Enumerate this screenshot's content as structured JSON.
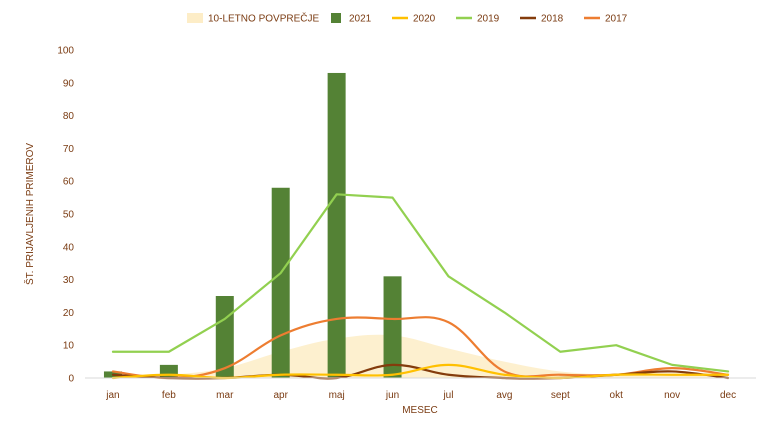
{
  "chart_data": {
    "type": "bar",
    "title": "",
    "xlabel": "MESEC",
    "ylabel": "ŠT. PRIJAVLJENIH PRIMEROV",
    "ylim": [
      0,
      100
    ],
    "yticks": [
      0,
      10,
      20,
      30,
      40,
      50,
      60,
      70,
      80,
      90,
      100
    ],
    "grid": false,
    "legend_position": "top",
    "categories": [
      "jan",
      "feb",
      "mar",
      "apr",
      "maj",
      "jun",
      "jul",
      "avg",
      "sept",
      "okt",
      "nov",
      "dec"
    ],
    "series": [
      {
        "name": "10-LETNO POVPREČJE",
        "kind": "area",
        "color": "#fdedc7",
        "values": [
          1,
          1,
          3,
          8,
          12,
          13,
          9,
          5,
          2,
          1,
          1,
          1
        ]
      },
      {
        "name": "2021",
        "kind": "bar",
        "color": "#548235",
        "values": [
          2,
          4,
          25,
          58,
          93,
          31,
          null,
          null,
          null,
          null,
          null,
          null
        ]
      },
      {
        "name": "2020",
        "kind": "line",
        "color": "#ffc000",
        "values": [
          0,
          1,
          0,
          1,
          1,
          1,
          4,
          1,
          0,
          1,
          1,
          1
        ]
      },
      {
        "name": "2019",
        "kind": "line",
        "color": "#92d050",
        "values": [
          8,
          8,
          18,
          32,
          56,
          55,
          31,
          20,
          8,
          10,
          4,
          2
        ]
      },
      {
        "name": "2018",
        "kind": "line",
        "color": "#843c0c",
        "values": [
          1,
          0,
          0,
          1,
          0,
          4,
          1,
          0,
          0,
          1,
          2,
          0
        ]
      },
      {
        "name": "2017",
        "kind": "line",
        "color": "#ed7d31",
        "values": [
          2,
          0,
          3,
          13,
          18,
          18,
          17,
          2,
          1,
          1,
          3,
          1
        ]
      }
    ]
  }
}
